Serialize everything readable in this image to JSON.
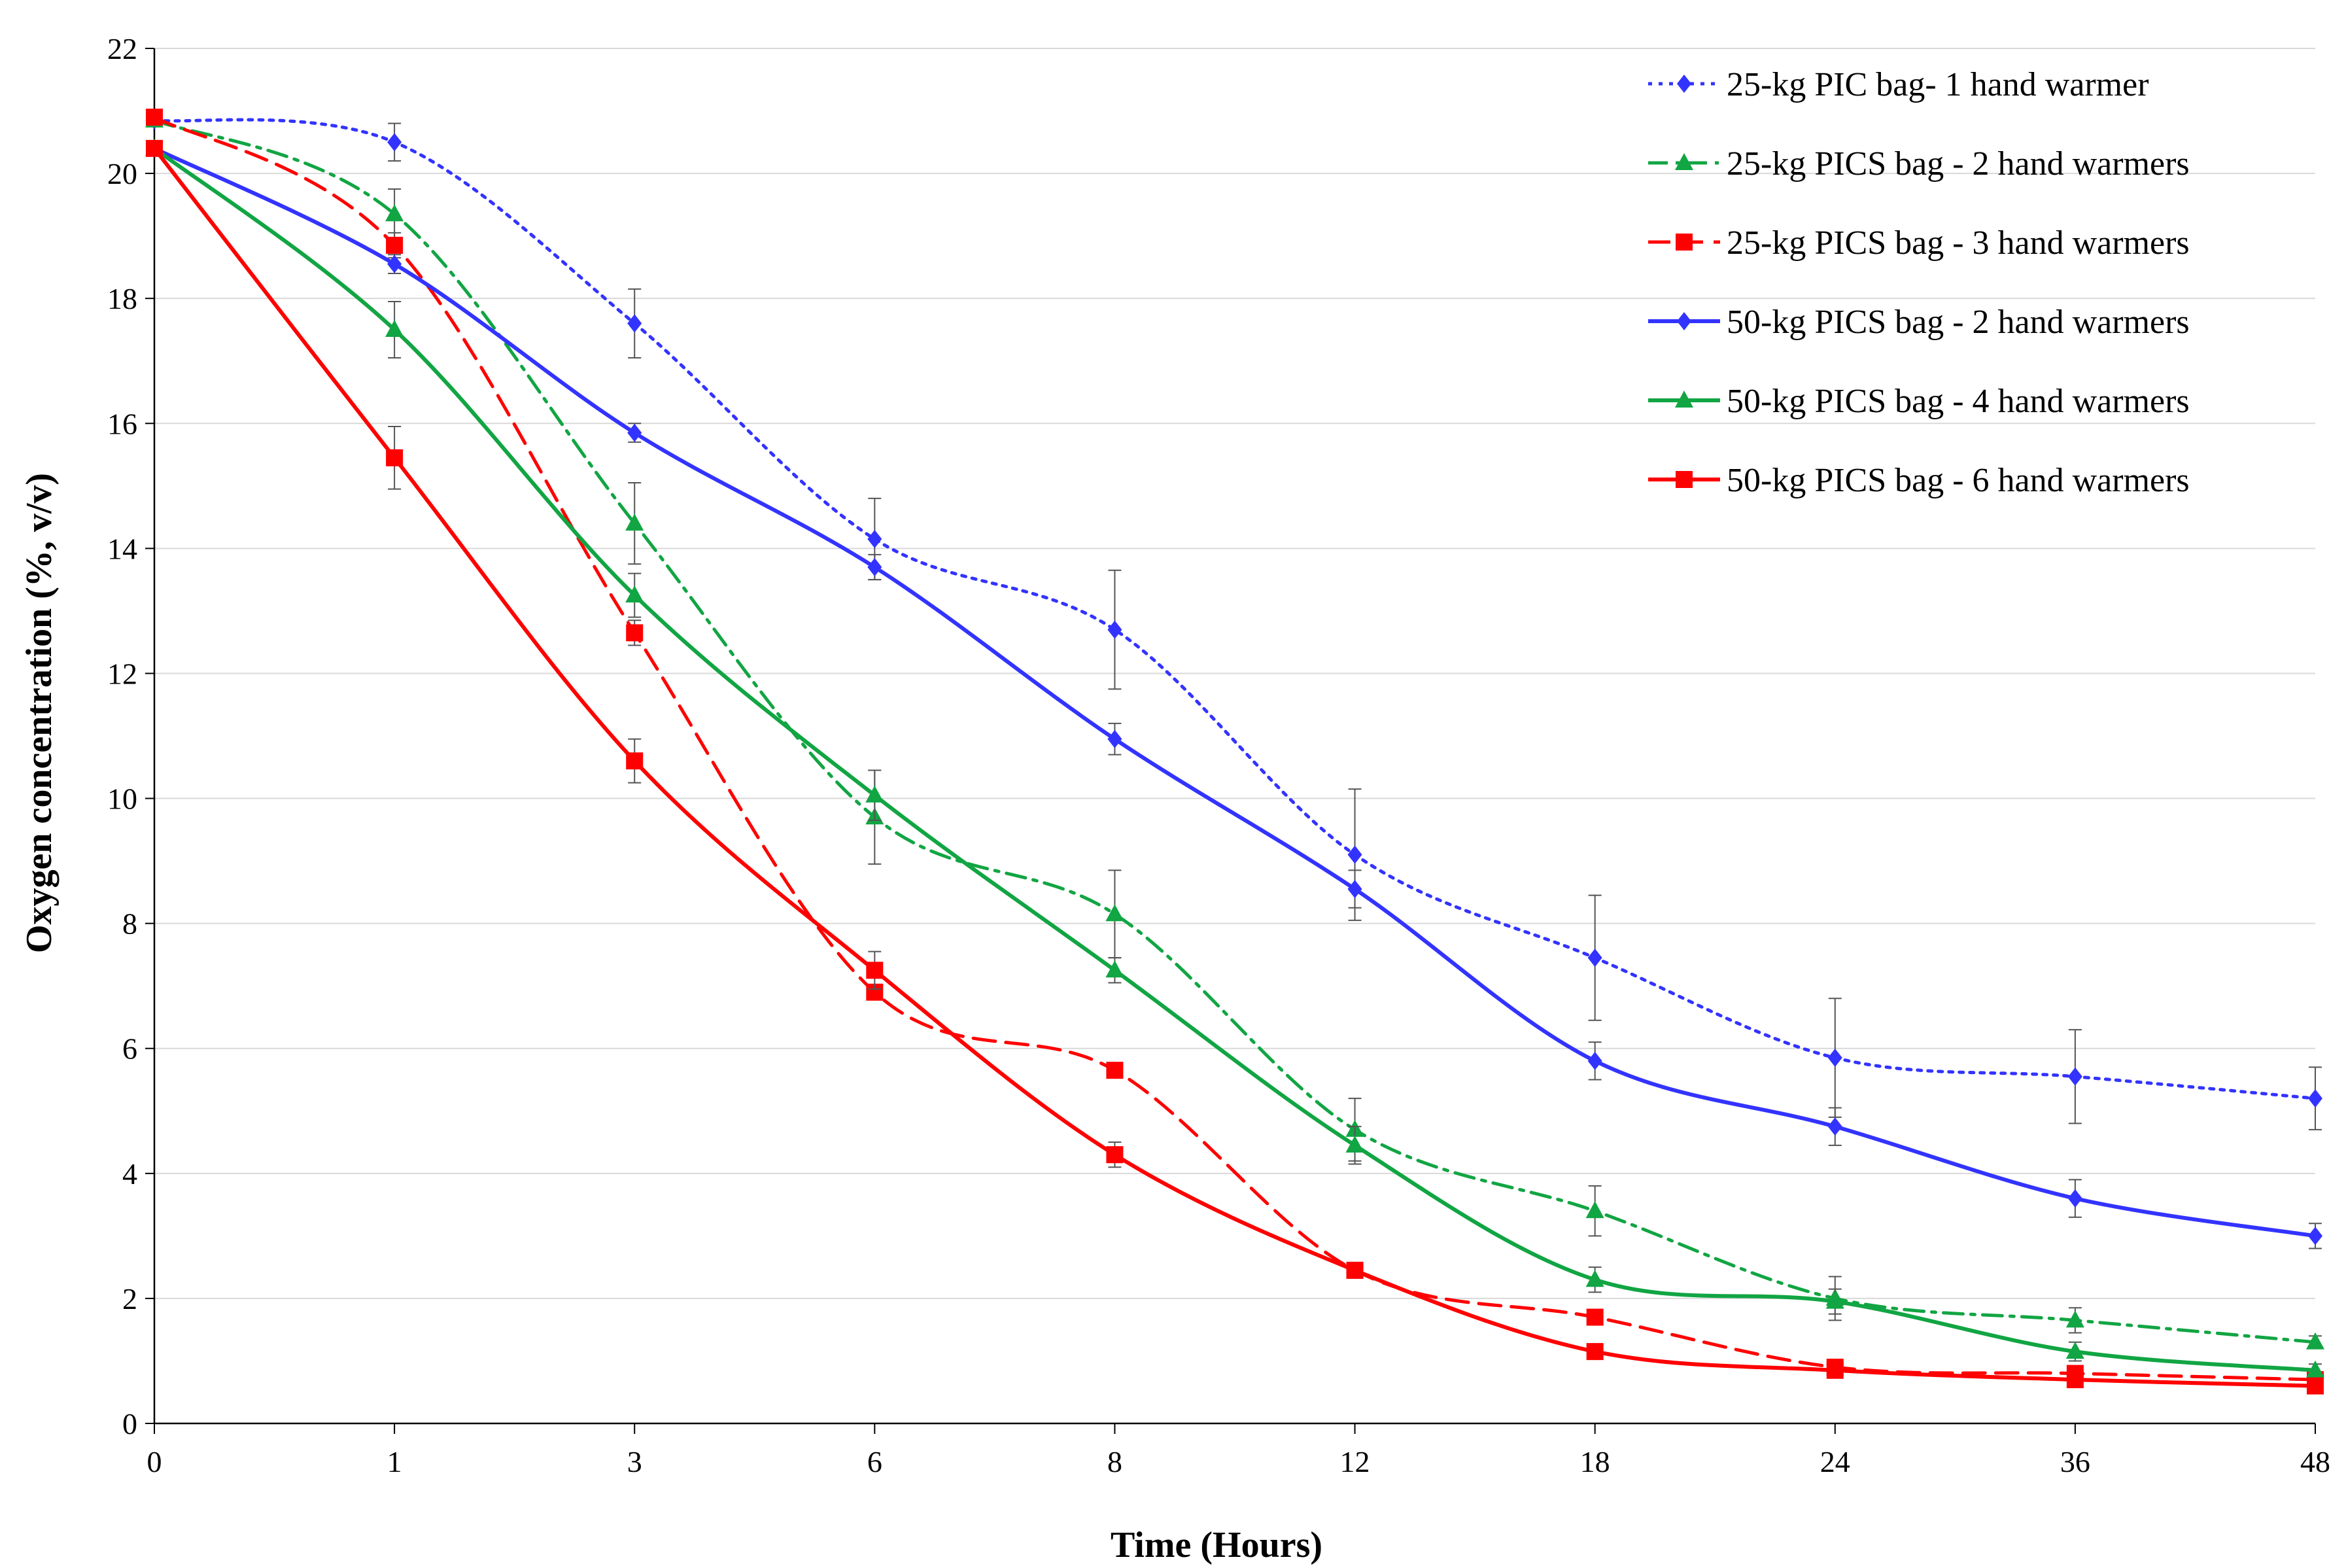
{
  "chart_data": {
    "type": "line",
    "title": "",
    "xlabel": "Time (Hours)",
    "ylabel": "Oxygen concentration (%, v/v)",
    "categories": [
      "0",
      "1",
      "3",
      "6",
      "8",
      "12",
      "18",
      "24",
      "36",
      "48"
    ],
    "ylim": [
      0,
      22
    ],
    "yticks": [
      "0",
      "2",
      "4",
      "6",
      "8",
      "10",
      "12",
      "14",
      "16",
      "18",
      "20",
      "22"
    ],
    "grid": true,
    "legend_position": "top-right",
    "series": [
      {
        "name": "25-kg PIC bag- 1 hand warmer",
        "color": "#3333ff",
        "line_style": "dotted",
        "marker": "diamond",
        "values": [
          20.85,
          20.5,
          17.6,
          14.15,
          12.7,
          9.1,
          7.45,
          5.85,
          5.55,
          5.2
        ],
        "errors": [
          0.1,
          0.3,
          0.55,
          0.65,
          0.95,
          1.05,
          1.0,
          0.95,
          0.75,
          0.5
        ]
      },
      {
        "name": "25-kg PICS bag - 2 hand warmers",
        "color": "#11a543",
        "line_style": "dash-dot",
        "marker": "triangle",
        "values": [
          20.85,
          19.35,
          14.4,
          9.7,
          8.15,
          4.7,
          3.4,
          2.0,
          1.65,
          1.3
        ],
        "errors": [
          0.1,
          0.4,
          0.65,
          0.75,
          0.7,
          0.5,
          0.4,
          0.35,
          0.2,
          0.1
        ]
      },
      {
        "name": "25-kg PICS bag - 3 hand warmers",
        "color": "#ff0000",
        "line_style": "dashed",
        "marker": "square",
        "values": [
          20.9,
          18.85,
          12.65,
          6.9,
          5.65,
          2.45,
          1.7,
          0.9,
          0.8,
          0.7
        ],
        "errors": [
          0.1,
          0.2,
          0.2,
          0.1,
          0.1,
          0.1,
          0.1,
          0.1,
          0.05,
          0.05
        ]
      },
      {
        "name": "50-kg PICS bag - 2 hand warmers",
        "color": "#3333ff",
        "line_style": "solid",
        "marker": "diamond",
        "values": [
          20.4,
          18.55,
          15.85,
          13.7,
          10.95,
          8.55,
          5.8,
          4.75,
          3.6,
          3.0
        ],
        "errors": [
          0.1,
          0.15,
          0.15,
          0.2,
          0.25,
          0.3,
          0.3,
          0.3,
          0.3,
          0.2
        ]
      },
      {
        "name": "50-kg PICS bag - 4 hand warmers",
        "color": "#11a543",
        "line_style": "solid",
        "marker": "triangle",
        "values": [
          20.4,
          17.5,
          13.25,
          10.05,
          7.25,
          4.45,
          2.3,
          1.95,
          1.15,
          0.85
        ],
        "errors": [
          0.1,
          0.45,
          0.35,
          0.4,
          0.2,
          0.3,
          0.2,
          0.2,
          0.15,
          0.1
        ]
      },
      {
        "name": "50-kg PICS bag - 6 hand warmers",
        "color": "#ff0000",
        "line_style": "solid",
        "marker": "square",
        "values": [
          20.4,
          15.45,
          10.6,
          7.25,
          4.3,
          2.45,
          1.15,
          0.85,
          0.7,
          0.6
        ],
        "errors": [
          0.1,
          0.5,
          0.35,
          0.3,
          0.2,
          0.1,
          0.1,
          0.1,
          0.05,
          0.05
        ]
      }
    ]
  }
}
